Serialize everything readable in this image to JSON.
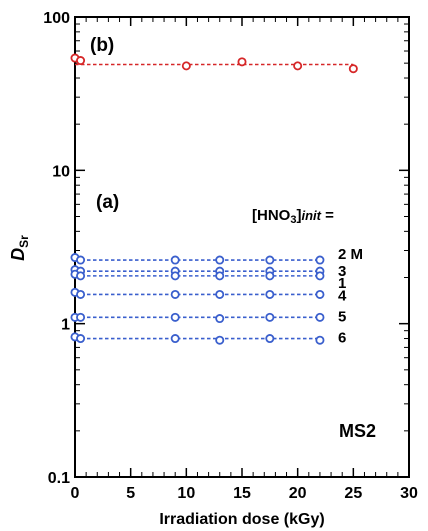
{
  "chart_data": {
    "type": "scatter",
    "title": "",
    "xlabel": "Irradiation dose (kGy)",
    "ylabel": "D",
    "ylabel_sub": "Sr",
    "xlim": [
      0,
      30
    ],
    "ylim": [
      0.1,
      100
    ],
    "yscale": "log",
    "x_ticks": [
      "0",
      "5",
      "10",
      "15",
      "20",
      "25",
      "30"
    ],
    "y_ticks": [
      "0.1",
      "1",
      "10",
      "100"
    ],
    "grid": false,
    "annotations": {
      "panel_b": "(b)",
      "panel_a": "(a)",
      "hno3_label": "[HNO",
      "hno3_sub": "3",
      "hno3_close": "]",
      "hno3_init": "init",
      "hno3_eq": " =",
      "sample": "MS2"
    },
    "series": [
      {
        "group": "b",
        "line_y": 49,
        "color": "#d62728",
        "x": [
          0,
          0.5,
          10,
          15,
          20,
          25
        ],
        "y": [
          54,
          52,
          48,
          51,
          48,
          46
        ]
      },
      {
        "group": "a",
        "label": "2 M",
        "line_y": 2.6,
        "color": "#3a5fcd",
        "x": [
          0,
          0.5,
          9,
          13,
          17.5,
          22
        ],
        "y": [
          2.7,
          2.6,
          2.6,
          2.6,
          2.6,
          2.6
        ]
      },
      {
        "group": "a",
        "label": "3",
        "line_y": 2.2,
        "color": "#3a5fcd",
        "x": [
          0,
          0.5,
          9,
          13,
          17.5,
          22
        ],
        "y": [
          2.25,
          2.2,
          2.2,
          2.2,
          2.2,
          2.2
        ]
      },
      {
        "group": "a",
        "label": "1",
        "line_y": 2.05,
        "color": "#3a5fcd",
        "x": [
          0,
          0.5,
          9,
          13,
          17.5,
          22
        ],
        "y": [
          2.1,
          2.05,
          2.05,
          2.05,
          2.05,
          2.05
        ]
      },
      {
        "group": "a",
        "label": "4",
        "line_y": 1.55,
        "color": "#3a5fcd",
        "x": [
          0,
          0.5,
          9,
          13,
          17.5,
          22
        ],
        "y": [
          1.6,
          1.55,
          1.55,
          1.55,
          1.55,
          1.55
        ]
      },
      {
        "group": "a",
        "label": "5",
        "line_y": 1.1,
        "color": "#3a5fcd",
        "x": [
          0,
          0.5,
          9,
          13,
          17.5,
          22
        ],
        "y": [
          1.1,
          1.1,
          1.1,
          1.08,
          1.1,
          1.1
        ]
      },
      {
        "group": "a",
        "label": "6",
        "line_y": 0.8,
        "color": "#3a5fcd",
        "x": [
          0,
          0.5,
          9,
          13,
          17.5,
          22
        ],
        "y": [
          0.82,
          0.8,
          0.8,
          0.78,
          0.8,
          0.78
        ]
      }
    ]
  }
}
